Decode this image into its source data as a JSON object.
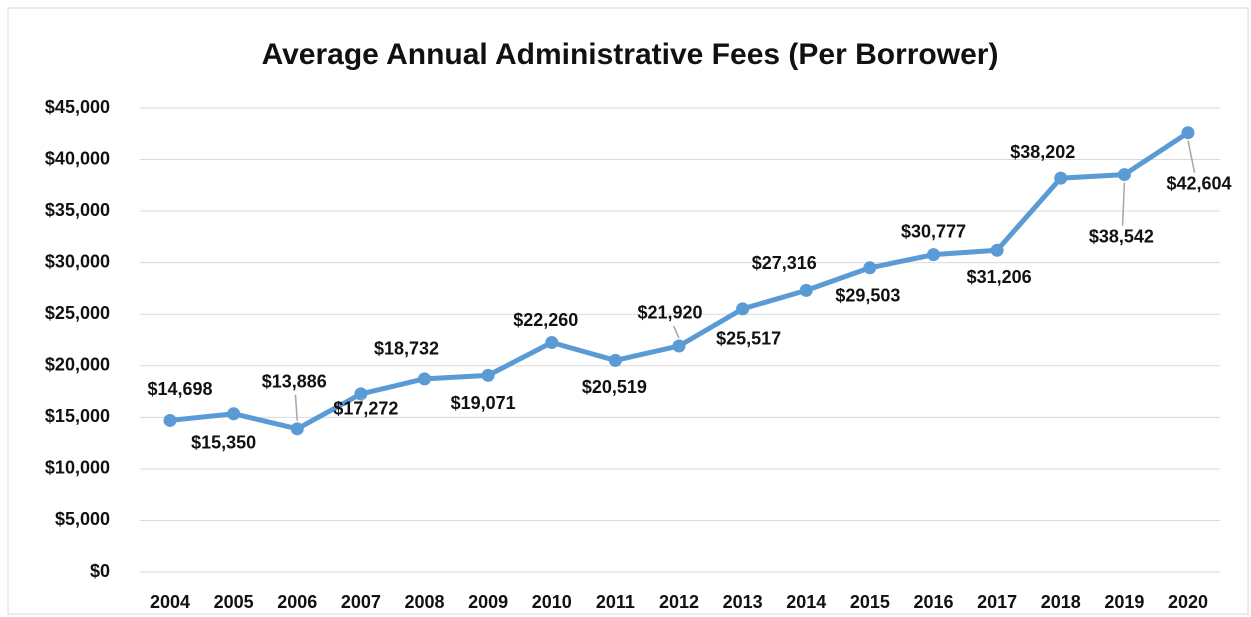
{
  "chart_data": {
    "type": "line",
    "title": "Average Annual Administrative Fees (Per Borrower)",
    "categories": [
      "2004",
      "2005",
      "2006",
      "2007",
      "2008",
      "2009",
      "2010",
      "2011",
      "2012",
      "2013",
      "2014",
      "2015",
      "2016",
      "2017",
      "2018",
      "2019",
      "2020"
    ],
    "series": [
      {
        "name": "Average Annual Administrative Fees",
        "color": "#5b9bd5",
        "values": [
          14698,
          15350,
          13886,
          17272,
          18732,
          19071,
          22260,
          20519,
          21920,
          25517,
          27316,
          29503,
          30777,
          31206,
          38202,
          38542,
          42604
        ],
        "value_labels": [
          "$14,698",
          "$15,350",
          "$13,886",
          "$17,272",
          "$18,732",
          "$19,071",
          "$22,260",
          "$20,519",
          "$21,920",
          "$25,517",
          "$27,316",
          "$29,503",
          "$30,777",
          "$31,206",
          "$38,202",
          "$38,542",
          "$42,604"
        ]
      }
    ],
    "ylim": [
      0,
      45000
    ],
    "yticks": [
      {
        "value": 0,
        "label": "$0"
      },
      {
        "value": 5000,
        "label": "$5,000"
      },
      {
        "value": 10000,
        "label": "$10,000"
      },
      {
        "value": 15000,
        "label": "$15,000"
      },
      {
        "value": 20000,
        "label": "$20,000"
      },
      {
        "value": 25000,
        "label": "$25,000"
      },
      {
        "value": 30000,
        "label": "$30,000"
      },
      {
        "value": 35000,
        "label": "$35,000"
      },
      {
        "value": 40000,
        "label": "$40,000"
      },
      {
        "value": 45000,
        "label": "$45,000"
      }
    ],
    "grid": true
  }
}
